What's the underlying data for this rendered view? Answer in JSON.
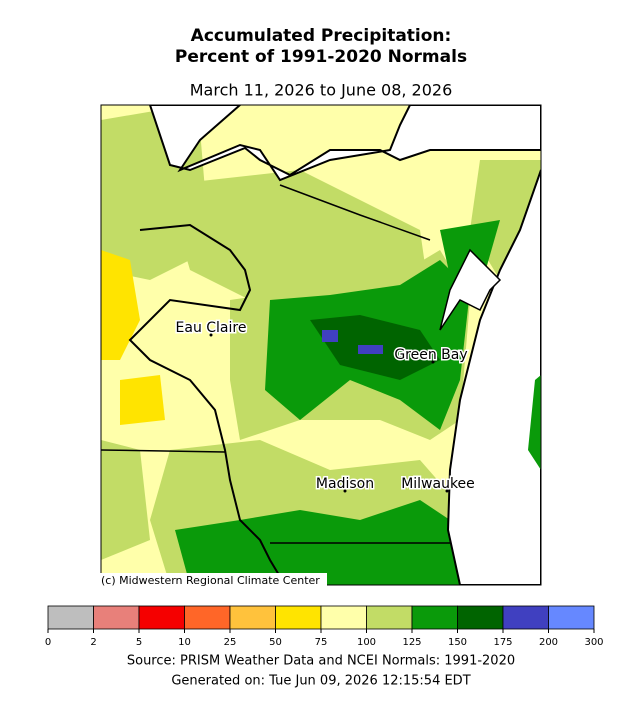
{
  "header": {
    "title_line1": "Accumulated Precipitation:",
    "title_line2": "Percent of 1991-2020 Normals",
    "subtitle": "March 11, 2026 to June 08, 2026"
  },
  "map": {
    "credit": "(c) Midwestern Regional Climate Center",
    "cities": [
      "Eau Claire",
      "Green Bay",
      "Madison",
      "Milwaukee"
    ]
  },
  "colorbar": {
    "ticks": [
      0,
      2,
      5,
      10,
      25,
      50,
      75,
      100,
      125,
      150,
      175,
      200,
      300
    ],
    "colors": [
      "#bebebe",
      "#e8807a",
      "#f50000",
      "#ff6628",
      "#ffc23c",
      "#ffe400",
      "#ffffaa",
      "#c2dc66",
      "#0a9a0a",
      "#006400",
      "#4040c0",
      "#6688ff"
    ]
  },
  "footer": {
    "source": "Source: PRISM Weather Data and NCEI Normals: 1991-2020",
    "generated": "Generated on: Tue Jun 09, 2026 12:15:54 EDT"
  }
}
